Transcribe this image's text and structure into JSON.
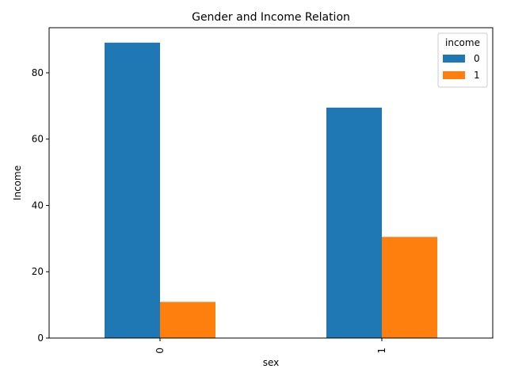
{
  "chart_data": {
    "type": "bar",
    "title": "Gender and Income Relation",
    "xlabel": "sex",
    "ylabel": "Income",
    "categories": [
      "0",
      "1"
    ],
    "series": [
      {
        "name": "0",
        "values": [
          89.1,
          69.5
        ],
        "color": "#1f77b4"
      },
      {
        "name": "1",
        "values": [
          10.9,
          30.5
        ],
        "color": "#ff7f0e"
      }
    ],
    "ylim": [
      0,
      93.6
    ],
    "yticks": [
      0,
      20,
      40,
      60,
      80
    ],
    "legend": {
      "title": "income",
      "placement": "top-right"
    },
    "grid": false
  }
}
